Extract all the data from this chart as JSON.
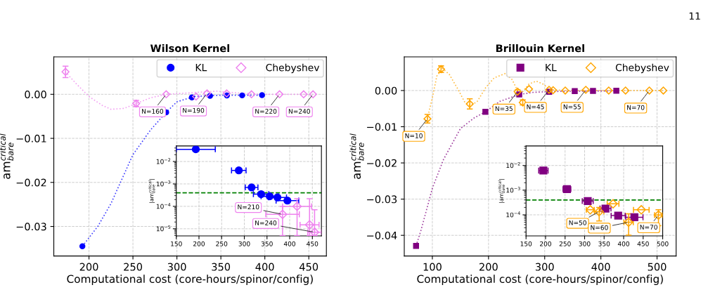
{
  "chart_data": [
    {
      "type": "scatter",
      "title": "Wilson Kernel",
      "xlabel": "Computational cost (core-hours/spinor/config)",
      "ylabel": "am$^{critical}$$_{bare}$",
      "xlim": [
        160,
        470
      ],
      "ylim": [
        -0.0367,
        0.0085
      ],
      "xticks": [
        200,
        250,
        300,
        350,
        400,
        450
      ],
      "yticks": [
        {
          "value": 0,
          "label": "0.00"
        },
        {
          "value": -0.01,
          "label": "−0.01"
        },
        {
          "value": -0.02,
          "label": "−0.02"
        },
        {
          "value": -0.03,
          "label": "−0.03"
        }
      ],
      "grid": true,
      "legend": "top right",
      "series": [
        {
          "type": "line",
          "color": "#0000ff",
          "line_style": "dotted",
          "x": [
            192.5,
            210,
            225,
            250,
            270,
            287.8,
            300,
            320,
            350,
            400
          ],
          "values": [
            -0.0345,
            -0.03,
            -0.0248,
            -0.0137,
            -0.0081,
            -0.0041,
            -0.0017,
            -0.0005,
            -0.0002,
            -0.0002
          ]
        },
        {
          "type": "line",
          "color": "#ee82ee",
          "line_style": "dotted",
          "x": [
            173,
            185,
            200,
            215,
            225,
            240,
            253.7,
            270,
            288,
            320,
            345,
            370,
            400,
            455
          ],
          "values": [
            0.0051,
            0.0025,
            -0.0005,
            -0.0025,
            -0.0034,
            -0.0032,
            -0.0021,
            -0.0008,
            0,
            0.0004,
            0.0007,
            0.0003,
            0,
            0
          ]
        },
        {
          "name": "KL",
          "marker": "circle",
          "color": "#0000ff",
          "x": [
            192.5,
            287.8,
            317,
            337.7,
            356.9,
            374.2,
            396.8
          ],
          "values": [
            -0.0345,
            -0.0041,
            -0.0007,
            -0.00035,
            -0.00028,
            -0.00025,
            -0.00018
          ]
        },
        {
          "name": "Chebyshev",
          "marker": "diamond",
          "color": "#ee82ee",
          "x": [
            173.3,
            253.7,
            287.8,
            321.8,
            334.3,
            356.6,
            384.8,
            416.7,
            444.1,
            454.8
          ],
          "values": [
            0.0051,
            -0.0021,
            0,
            -0.0005,
            0.0002,
            0.0002,
            0,
            0,
            0,
            0
          ],
          "errors": [
            0.0013,
            0.0007,
            null,
            null,
            null,
            null,
            null,
            null,
            null,
            null
          ]
        }
      ],
      "annotations": [
        "11",
        {
          "text": "N=160",
          "x": 287.8,
          "y": 0
        },
        {
          "text": "N=190",
          "x": 334.3,
          "y": 0.0002
        },
        {
          "text": "N=220",
          "x": 416.7,
          "y": 0
        },
        {
          "text": "N=240",
          "x": 454.8,
          "y": 0
        }
      ]
    },
    {
      "type": "scatter",
      "ylabel": "|am$^{critical}$$_{bare}$|",
      "log": "y",
      "xlim": [
        150,
        470
      ],
      "ylim": [
        4.8e-06,
        0.0495
      ],
      "xticks": [
        150,
        200,
        250,
        300,
        350,
        400,
        450
      ],
      "yticks": [
        {
          "value": 0.01,
          "label": "10$^{−2}$"
        },
        {
          "value": 0.001,
          "label": "10$^{−3}$"
        },
        {
          "value": 0.0001,
          "label": "10$^{−4}$"
        },
        {
          "value": 1e-05,
          "label": "10$^{−5}$"
        }
      ],
      "grid": true,
      "ref_lines": [
        {
          "axis": "y",
          "value": 0.0004,
          "color": "#008000",
          "line_style": "dashed"
        }
      ],
      "series": [
        {
          "marker": "circle",
          "color": "#0000ff",
          "x": [
            193,
            287.8,
            316,
            337,
            356,
            373,
            395
          ],
          "values": [
            0.035,
            0.004,
            0.0007,
            0.00035,
            0.00028,
            0.00025,
            0.00018
          ],
          "xerrors": [
            43,
            16,
            14,
            17,
            19,
            20,
            25
          ]
        },
        {
          "marker": "diamond",
          "color": "#ee82ee",
          "x": [
            384.3,
            416.3,
            443.8,
            454.9
          ],
          "values": [
            4.4e-05,
            0.0001,
            1.5e-05,
            7e-06
          ],
          "xerrors": [
            37,
            32,
            21,
            15
          ],
          "errors": [
            [
              5e-06,
              0.0001
            ],
            [
              5e-06,
              0.00022
            ],
            [
              5e-06,
              0.00022
            ],
            [
              5e-06,
              7e-05
            ]
          ]
        }
      ],
      "annotations": [
        {
          "text": "N=210",
          "x": 384.3,
          "y": 4.4e-05
        },
        {
          "text": "N=240",
          "x": 454.9,
          "y": 7e-06
        }
      ]
    },
    {
      "type": "scatter",
      "title": "Brillouin Kernel",
      "xlabel": "Computational cost (core-hours/spinor/config)",
      "ylabel": "am$^{critical}$$_{bare}$",
      "xlim": [
        50,
        534
      ],
      "ylim": [
        -0.0457,
        0.0093
      ],
      "xticks": [
        100,
        200,
        300,
        400,
        500
      ],
      "yticks": [
        {
          "value": 0,
          "label": "0.00"
        },
        {
          "value": -0.01,
          "label": "−0.01"
        },
        {
          "value": -0.02,
          "label": "−0.02"
        },
        {
          "value": -0.03,
          "label": "−0.03"
        },
        {
          "value": -0.04,
          "label": "−0.04"
        }
      ],
      "grid": true,
      "legend": "top right",
      "series": [
        {
          "type": "line",
          "color": "#800080",
          "line_style": "dotted",
          "x": [
            71,
            80,
            100,
            120,
            150,
            175,
            194.4,
            220,
            255,
            280,
            308,
            350,
            428
          ],
          "values": [
            -0.0429,
            -0.0385,
            -0.027,
            -0.019,
            -0.0105,
            -0.0075,
            -0.0059,
            -0.003,
            -0.0011,
            -0.0005,
            -0.0003,
            -0.0002,
            -0.0001
          ]
        },
        {
          "type": "line",
          "color": "#ffa500",
          "line_style": "dotted",
          "x": [
            91,
            100,
            108,
            118,
            130,
            145,
            158,
            168,
            180,
            195,
            210,
            230,
            242,
            252,
            260,
            272,
            285,
            298,
            310,
            340,
            400,
            511
          ],
          "values": [
            -0.0078,
            -0.002,
            0.004,
            0.0061,
            0.0045,
            0.0005,
            -0.0033,
            -0.0042,
            -0.003,
            0.0008,
            0.0035,
            0.0047,
            0.003,
            -0.0001,
            -0.0005,
            0.0018,
            0.0026,
            0.0017,
            0.0002,
            0,
            0,
            0
          ]
        },
        {
          "name": "KL",
          "marker": "square",
          "color": "#800080",
          "x": [
            71,
            194.4,
            254.7,
            308,
            353.5,
            386,
            427.5
          ],
          "values": [
            -0.0429,
            -0.0059,
            -0.0011,
            -0.00036,
            -0.00018,
            -0.0001,
            -8e-05
          ]
        },
        {
          "name": "Chebyshev",
          "marker": "diamond",
          "color": "#ffa500",
          "x": [
            91.3,
            115.5,
            166.6,
            251.8,
            260.9,
            272.1,
            307.8,
            315,
            336.6,
            373.2,
            414,
            443.9,
            486.3,
            511.2
          ],
          "values": [
            -0.0078,
            0.0059,
            -0.0037,
            -0.0003,
            -0.0033,
            0.0004,
            0.0002,
            0.0001,
            0,
            0.0002,
            0,
            0,
            0,
            0
          ],
          "errors": [
            0.0012,
            0.0009,
            0.0014,
            0.0005,
            0.0007,
            null,
            null,
            null,
            null,
            null,
            null,
            null,
            null,
            null
          ]
        }
      ],
      "annotations": [
        {
          "text": "N=10",
          "x": 91.3,
          "y": -0.0078
        },
        {
          "text": "N=35",
          "x": 251.8,
          "y": -0.0003
        },
        {
          "text": "N=45",
          "x": 307.8,
          "y": 0.0002
        },
        {
          "text": "N=55",
          "x": 373.2,
          "y": 0.0002
        },
        {
          "text": "N=70",
          "x": 486.3,
          "y": 0
        }
      ]
    },
    {
      "type": "scatter",
      "ylabel": "|am$^{critical}$$_{bare}$|",
      "log": "y",
      "xlim": [
        150,
        500
      ],
      "ylim": [
        1.4e-05,
        0.062
      ],
      "xticks": [
        150,
        200,
        250,
        300,
        350,
        400,
        450,
        500
      ],
      "yticks": [
        {
          "value": 0.01,
          "label": "10$^{−2}$"
        },
        {
          "value": 0.001,
          "label": "10$^{−3}$"
        },
        {
          "value": 0.0001,
          "label": "10$^{−4}$"
        }
      ],
      "grid": true,
      "ref_lines": [
        {
          "axis": "y",
          "value": 0.0004,
          "color": "#008000",
          "line_style": "dashed"
        }
      ],
      "series": [
        {
          "marker": "square",
          "color": "#800080",
          "x": [
            194.4,
            254.7,
            308,
            353.5,
            386,
            427.5
          ],
          "values": [
            0.0062,
            0.0011,
            0.00036,
            0.00018,
            9.3e-05,
            8e-05
          ],
          "xerrors": [
            12,
            10,
            14,
            14,
            18,
            22
          ]
        },
        {
          "marker": "diamond",
          "color": "#ffa500",
          "x": [
            314.5,
            337.3,
            372.9,
            412.7,
            445.2,
            489.2
          ],
          "values": [
            0.00016,
            0.000135,
            0.00028,
            5e-05,
            0.00016,
            9.8e-05
          ],
          "xerrors": [
            10,
            12,
            15,
            12,
            20,
            10
          ],
          "errors": [
            null,
            [
              5.6e-05,
              0.0002
            ],
            null,
            [
              1.5e-05,
              0.00011
            ],
            null,
            [
              3.6e-05,
              0.00016
            ]
          ]
        }
      ],
      "annotations": [
        {
          "text": "N=50",
          "x": 337.3,
          "y": 0.000135
        },
        {
          "text": "N=60",
          "x": 412.7,
          "y": 5e-05
        },
        {
          "text": "N=70",
          "x": 489.2,
          "y": 9.8e-05
        }
      ]
    }
  ]
}
